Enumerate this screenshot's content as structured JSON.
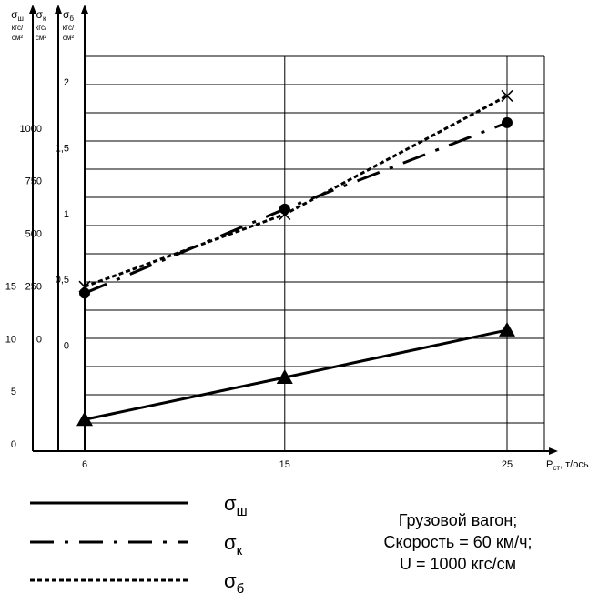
{
  "chart_data": {
    "type": "line",
    "x": [
      6,
      15,
      25
    ],
    "x_ticks": [
      "6",
      "15",
      "25"
    ],
    "x_axis_label": {
      "symbol": "P",
      "subscript": "ст",
      "unit": ", т/ось"
    },
    "y_axes": [
      {
        "id": "sh",
        "symbol": "σ",
        "subscript": "ш",
        "unit": "кгс/см²",
        "ticks": [
          "0",
          "5",
          "10",
          "15"
        ],
        "range": [
          0,
          37.5
        ]
      },
      {
        "id": "k",
        "symbol": "σ",
        "subscript": "к",
        "unit": "кгс/см²",
        "ticks": [
          "0",
          "250",
          "500",
          "750",
          "1000"
        ],
        "range": [
          -500,
          1375
        ]
      },
      {
        "id": "b",
        "symbol": "σ",
        "subscript": "б",
        "unit": "кгс/см²",
        "ticks": [
          "0",
          "0,5",
          "1",
          "1,5",
          "2"
        ],
        "range": [
          -0.75,
          2.25
        ]
      }
    ],
    "series": [
      {
        "axis": "sh",
        "symbol": "σ",
        "subscript": "ш",
        "style": "solid",
        "marker": "triangle",
        "values": [
          3,
          7,
          11.5
        ]
      },
      {
        "axis": "k",
        "symbol": "σ",
        "subscript": "к",
        "style": "dash-dot",
        "marker": "circle",
        "values": [
          250,
          650,
          1060
        ]
      },
      {
        "axis": "b",
        "symbol": "σ",
        "subscript": "б",
        "style": "dotted",
        "marker": "cross",
        "values": [
          0.5,
          1.05,
          1.95
        ]
      }
    ],
    "grid": true,
    "horizontal_gridlines": 14
  },
  "info": {
    "line1": "Грузовой вагон;",
    "line2": "Скорость = 60 км/ч;",
    "line3": "U = 1000 кгс/см"
  },
  "colors": {
    "ink": "#000000",
    "background": "#ffffff"
  }
}
